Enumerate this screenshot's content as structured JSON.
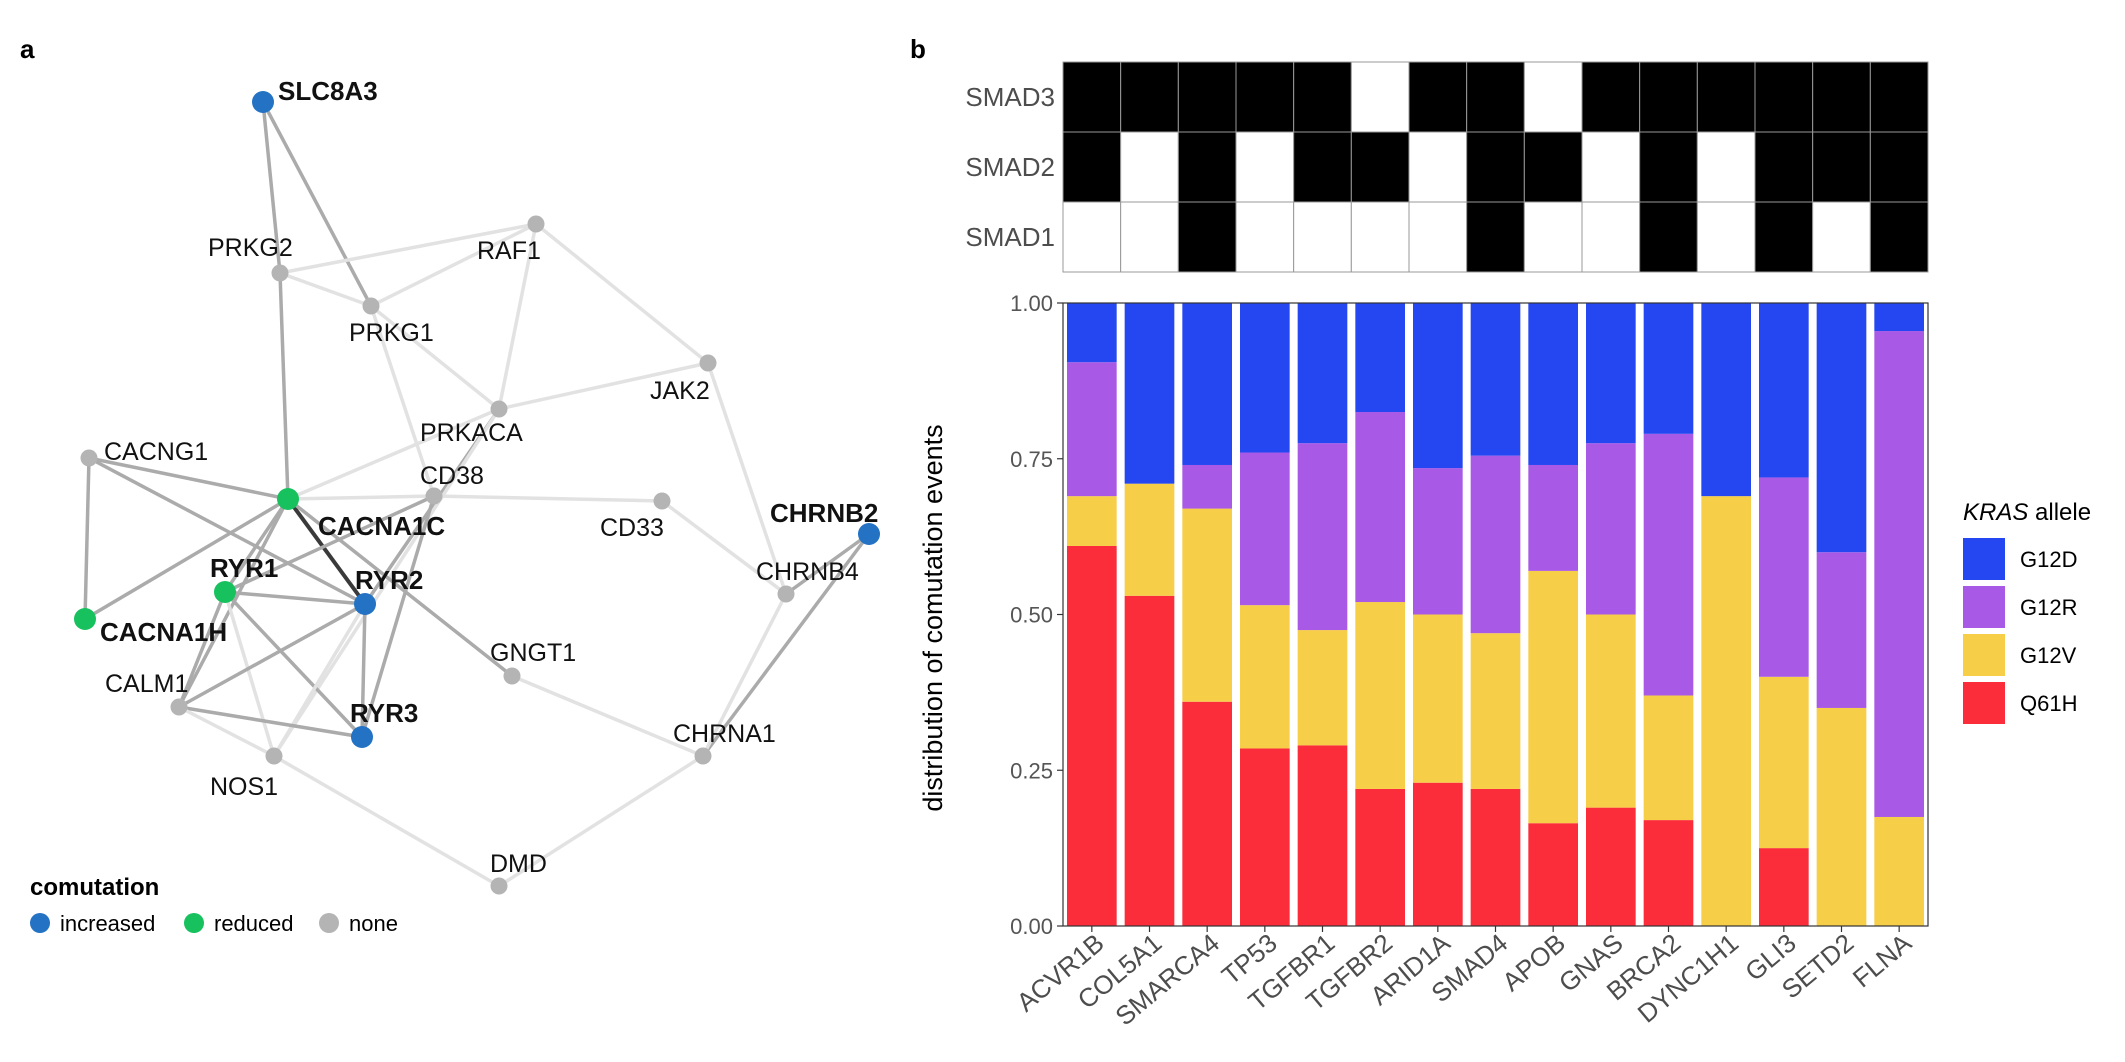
{
  "panels": {
    "a": "a",
    "b": "b"
  },
  "colors": {
    "increased": "#2372C4",
    "reduced": "#17C15E",
    "none": "#B4B4B4",
    "G12D": "#2447F2",
    "G12R": "#A85AE6",
    "G12V": "#F7CE48",
    "Q61H": "#FB2D3A"
  },
  "network": {
    "legend": {
      "title": "comutation",
      "items": [
        {
          "key": "increased",
          "label": "increased"
        },
        {
          "key": "reduced",
          "label": "reduced"
        },
        {
          "key": "none",
          "label": "none"
        }
      ]
    },
    "nodes": [
      {
        "id": "SLC8A3",
        "status": "increased",
        "bold": true
      },
      {
        "id": "PRKG2",
        "status": "none"
      },
      {
        "id": "PRKG1",
        "status": "none"
      },
      {
        "id": "RAF1",
        "status": "none"
      },
      {
        "id": "JAK2",
        "status": "none"
      },
      {
        "id": "PRKACA",
        "status": "none"
      },
      {
        "id": "CACNG1",
        "status": "none"
      },
      {
        "id": "CD38",
        "status": "none"
      },
      {
        "id": "CACNA1C",
        "status": "reduced",
        "bold": true
      },
      {
        "id": "CD33",
        "status": "none"
      },
      {
        "id": "CHRNB2",
        "status": "increased",
        "bold": true
      },
      {
        "id": "RYR1",
        "status": "reduced",
        "bold": true
      },
      {
        "id": "RYR2",
        "status": "increased",
        "bold": true
      },
      {
        "id": "CHRNB4",
        "status": "none"
      },
      {
        "id": "CACNA1H",
        "status": "reduced",
        "bold": true
      },
      {
        "id": "GNGT1",
        "status": "none"
      },
      {
        "id": "CALM1",
        "status": "none"
      },
      {
        "id": "RYR3",
        "status": "increased",
        "bold": true
      },
      {
        "id": "CHRNA1",
        "status": "none"
      },
      {
        "id": "NOS1",
        "status": "none"
      },
      {
        "id": "DMD",
        "status": "none"
      }
    ],
    "edges": [
      [
        "SLC8A3",
        "PRKG2"
      ],
      [
        "SLC8A3",
        "PRKG1"
      ],
      [
        "PRKG2",
        "RAF1"
      ],
      [
        "PRKG2",
        "PRKG1"
      ],
      [
        "PRKG2",
        "CACNA1C"
      ],
      [
        "PRKG1",
        "RAF1"
      ],
      [
        "PRKG1",
        "PRKACA"
      ],
      [
        "PRKG1",
        "CD38"
      ],
      [
        "RAF1",
        "JAK2"
      ],
      [
        "RAF1",
        "PRKACA"
      ],
      [
        "JAK2",
        "PRKACA"
      ],
      [
        "JAK2",
        "CHRNB4"
      ],
      [
        "PRKACA",
        "CACNA1C"
      ],
      [
        "PRKACA",
        "RYR2"
      ],
      [
        "PRKACA",
        "NOS1"
      ],
      [
        "CACNG1",
        "CACNA1C"
      ],
      [
        "CACNG1",
        "CACNA1H"
      ],
      [
        "CACNG1",
        "RYR2"
      ],
      [
        "CACNA1C",
        "CD38"
      ],
      [
        "CACNA1C",
        "CACNA1H"
      ],
      [
        "CACNA1C",
        "RYR1"
      ],
      [
        "CACNA1C",
        "RYR2"
      ],
      [
        "CACNA1C",
        "GNGT1"
      ],
      [
        "CACNA1C",
        "CALM1"
      ],
      [
        "CD38",
        "CD33"
      ],
      [
        "CD38",
        "RYR1"
      ],
      [
        "CD38",
        "RYR3"
      ],
      [
        "CD33",
        "CHRNB4"
      ],
      [
        "CHRNB2",
        "CHRNB4"
      ],
      [
        "CHRNB2",
        "CHRNA1"
      ],
      [
        "CHRNB4",
        "CHRNA1"
      ],
      [
        "RYR1",
        "RYR2"
      ],
      [
        "RYR1",
        "RYR3"
      ],
      [
        "RYR1",
        "CALM1"
      ],
      [
        "RYR1",
        "NOS1"
      ],
      [
        "RYR2",
        "RYR3"
      ],
      [
        "RYR2",
        "CALM1"
      ],
      [
        "RYR2",
        "NOS1"
      ],
      [
        "CALM1",
        "RYR3"
      ],
      [
        "CALM1",
        "NOS1"
      ],
      [
        "GNGT1",
        "CHRNA1"
      ],
      [
        "NOS1",
        "DMD"
      ],
      [
        "DMD",
        "CHRNA1"
      ]
    ]
  },
  "heatmap": {
    "rows": [
      "SMAD3",
      "SMAD2",
      "SMAD1"
    ],
    "matrix": [
      [
        1,
        1,
        1,
        1,
        1,
        0,
        1,
        1,
        0,
        1,
        1,
        1,
        1,
        1,
        1
      ],
      [
        1,
        0,
        1,
        0,
        1,
        1,
        0,
        1,
        1,
        0,
        1,
        0,
        1,
        1,
        1
      ],
      [
        0,
        0,
        1,
        0,
        0,
        0,
        0,
        1,
        0,
        0,
        1,
        0,
        1,
        0,
        1
      ]
    ]
  },
  "chart_data": {
    "type": "bar",
    "stacked": true,
    "categories": [
      "ACVR1B",
      "COL5A1",
      "SMARCA4",
      "TP53",
      "TGFBR1",
      "TGFBR2",
      "ARID1A",
      "SMAD4",
      "APOB",
      "GNAS",
      "BRCA2",
      "DYNC1H1",
      "GLI3",
      "SETD2",
      "FLNA"
    ],
    "series": [
      {
        "name": "Q61H",
        "values": [
          0.61,
          0.53,
          0.36,
          0.285,
          0.29,
          0.22,
          0.23,
          0.22,
          0.165,
          0.19,
          0.17,
          0,
          0.125,
          0,
          0
        ]
      },
      {
        "name": "G12V",
        "values": [
          0.08,
          0.18,
          0.31,
          0.23,
          0.185,
          0.3,
          0.27,
          0.25,
          0.405,
          0.31,
          0.2,
          0.69,
          0.275,
          0.35,
          0.175
        ]
      },
      {
        "name": "G12R",
        "values": [
          0.215,
          0,
          0.07,
          0.245,
          0.3,
          0.305,
          0.235,
          0.285,
          0.17,
          0.275,
          0.42,
          0,
          0.32,
          0.25,
          0.78
        ]
      },
      {
        "name": "G12D",
        "values": [
          0.095,
          0.29,
          0.26,
          0.24,
          0.225,
          0.175,
          0.265,
          0.245,
          0.26,
          0.225,
          0.21,
          0.31,
          0.28,
          0.4,
          0.045
        ]
      }
    ],
    "ylabel": "distribution of comutation events",
    "ylim": [
      0,
      1
    ],
    "yticks": [
      "0.00",
      "0.25",
      "0.50",
      "0.75",
      "1.00"
    ],
    "legend": {
      "title_italic": "KRAS",
      "title_rest": " allele",
      "entries": [
        "G12D",
        "G12R",
        "G12V",
        "Q61H"
      ],
      "placement": "right"
    }
  }
}
